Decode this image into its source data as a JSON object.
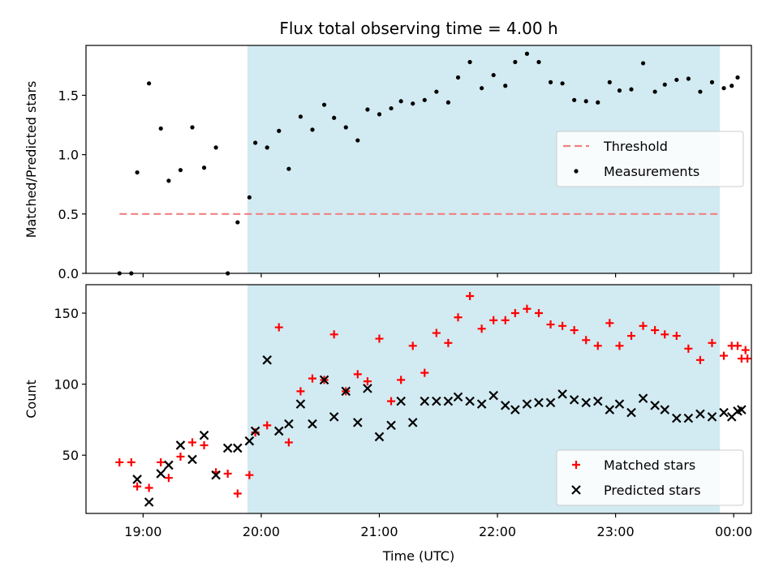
{
  "chart_data": [
    {
      "type": "scatter",
      "title": "Flux total observing time = 4.00 h",
      "xlabel": "",
      "ylabel": "Matched/Predicted stars",
      "xlim": [
        "18:31",
        "00:09"
      ],
      "ylim": [
        0,
        1.92
      ],
      "yticks": [
        0.0,
        0.5,
        1.0,
        1.5
      ],
      "ytick_labels": [
        "0.0",
        "0.5",
        "1.0",
        "1.5"
      ],
      "xticks": [
        "19:00",
        "20:00",
        "21:00",
        "22:00",
        "23:00",
        "00:00"
      ],
      "tick_labels_visible": false,
      "shaded_region": {
        "x0": "19:53",
        "x1": "23:53",
        "color": "#add8e6"
      },
      "legend": {
        "placement": "center-right",
        "entries": [
          "Threshold",
          "Measurements"
        ]
      },
      "series": [
        {
          "name": "Threshold",
          "style": "dashed-line",
          "color": "#f08080",
          "x": [
            "18:48",
            "23:53"
          ],
          "y": [
            0.5,
            0.5
          ]
        },
        {
          "name": "Measurements",
          "style": "dot",
          "color": "#000000",
          "x": [
            "18:48",
            "18:54",
            "18:57",
            "19:03",
            "19:09",
            "19:13",
            "19:19",
            "19:25",
            "19:31",
            "19:37",
            "19:43",
            "19:48",
            "19:54",
            "19:57",
            "20:03",
            "20:09",
            "20:14",
            "20:20",
            "20:26",
            "20:32",
            "20:37",
            "20:43",
            "20:49",
            "20:54",
            "21:00",
            "21:06",
            "21:11",
            "21:17",
            "21:23",
            "21:29",
            "21:35",
            "21:40",
            "21:46",
            "21:52",
            "21:58",
            "22:04",
            "22:09",
            "22:15",
            "22:21",
            "22:27",
            "22:33",
            "22:39",
            "22:45",
            "22:51",
            "22:57",
            "23:02",
            "23:08",
            "23:14",
            "23:20",
            "23:25",
            "23:31",
            "23:37",
            "23:43",
            "23:49",
            "23:55",
            "23:59",
            "00:02"
          ],
          "y": [
            0.0,
            0.0,
            0.85,
            1.6,
            1.22,
            0.78,
            0.87,
            1.23,
            0.89,
            1.06,
            0.0,
            0.43,
            0.64,
            1.1,
            1.06,
            1.2,
            0.88,
            1.32,
            1.21,
            1.42,
            1.31,
            1.23,
            1.12,
            1.38,
            1.34,
            1.39,
            1.45,
            1.43,
            1.46,
            1.53,
            1.44,
            1.65,
            1.78,
            1.56,
            1.67,
            1.58,
            1.78,
            1.85,
            1.78,
            1.61,
            1.6,
            1.46,
            1.45,
            1.44,
            1.61,
            1.54,
            1.55,
            1.77,
            1.53,
            1.59,
            1.63,
            1.64,
            1.53,
            1.61,
            1.56,
            1.58,
            1.65
          ]
        }
      ]
    },
    {
      "type": "scatter",
      "title": "",
      "xlabel": "Time (UTC)",
      "ylabel": "Count",
      "xlim": [
        "18:31",
        "00:09"
      ],
      "ylim": [
        9,
        170
      ],
      "yticks": [
        50,
        100,
        150
      ],
      "ytick_labels": [
        "50",
        "100",
        "150"
      ],
      "xticks": [
        "19:00",
        "20:00",
        "21:00",
        "22:00",
        "23:00",
        "00:00"
      ],
      "xtick_labels": [
        "19:00",
        "20:00",
        "21:00",
        "22:00",
        "23:00",
        "00:00"
      ],
      "shaded_region": {
        "x0": "19:53",
        "x1": "23:53",
        "color": "#add8e6"
      },
      "legend": {
        "placement": "lower-right",
        "entries": [
          "Matched stars",
          "Predicted stars"
        ]
      },
      "series": [
        {
          "name": "Matched stars",
          "marker": "plus",
          "color": "#ff0000",
          "x": [
            "18:48",
            "18:54",
            "18:57",
            "19:03",
            "19:09",
            "19:13",
            "19:19",
            "19:25",
            "19:31",
            "19:37",
            "19:43",
            "19:48",
            "19:54",
            "19:57",
            "20:03",
            "20:09",
            "20:14",
            "20:20",
            "20:26",
            "20:32",
            "20:37",
            "20:43",
            "20:49",
            "20:54",
            "21:00",
            "21:06",
            "21:11",
            "21:17",
            "21:23",
            "21:29",
            "21:35",
            "21:40",
            "21:46",
            "21:52",
            "21:58",
            "22:04",
            "22:09",
            "22:15",
            "22:21",
            "22:27",
            "22:33",
            "22:39",
            "22:45",
            "22:51",
            "22:57",
            "23:02",
            "23:08",
            "23:14",
            "23:20",
            "23:25",
            "23:31",
            "23:37",
            "23:43",
            "23:49",
            "23:55",
            "23:59",
            "00:02",
            "00:04",
            "00:06",
            "00:07"
          ],
          "y": [
            45,
            45,
            28,
            27,
            45,
            34,
            49,
            59,
            57,
            38,
            37,
            23,
            36,
            66,
            71,
            140,
            59,
            95,
            104,
            103,
            135,
            95,
            107,
            102,
            132,
            88,
            103,
            127,
            108,
            136,
            129,
            147,
            162,
            139,
            145,
            145,
            150,
            153,
            150,
            142,
            141,
            138,
            131,
            127,
            143,
            127,
            134,
            141,
            138,
            135,
            134,
            125,
            117,
            129,
            120,
            127,
            127,
            118,
            124,
            118
          ]
        },
        {
          "name": "Predicted stars",
          "marker": "x",
          "color": "#000000",
          "x": [
            "18:57",
            "19:03",
            "19:09",
            "19:13",
            "19:19",
            "19:25",
            "19:31",
            "19:37",
            "19:43",
            "19:48",
            "19:54",
            "19:57",
            "20:03",
            "20:09",
            "20:14",
            "20:20",
            "20:26",
            "20:32",
            "20:37",
            "20:43",
            "20:49",
            "20:54",
            "21:00",
            "21:06",
            "21:11",
            "21:17",
            "21:23",
            "21:29",
            "21:35",
            "21:40",
            "21:46",
            "21:52",
            "21:58",
            "22:04",
            "22:09",
            "22:15",
            "22:21",
            "22:27",
            "22:33",
            "22:39",
            "22:45",
            "22:51",
            "22:57",
            "23:02",
            "23:08",
            "23:14",
            "23:20",
            "23:25",
            "23:31",
            "23:37",
            "23:43",
            "23:49",
            "23:55",
            "23:59",
            "00:02",
            "00:04"
          ],
          "y": [
            33,
            17,
            37,
            43,
            57,
            47,
            64,
            36,
            55,
            55,
            60,
            67,
            117,
            67,
            72,
            86,
            72,
            103,
            77,
            95,
            73,
            97,
            63,
            71,
            88,
            73,
            88,
            88,
            88,
            91,
            88,
            86,
            92,
            85,
            82,
            86,
            87,
            87,
            93,
            89,
            87,
            88,
            82,
            86,
            80,
            90,
            85,
            82,
            76,
            76,
            79,
            77,
            80,
            77,
            81,
            82
          ]
        }
      ]
    }
  ]
}
